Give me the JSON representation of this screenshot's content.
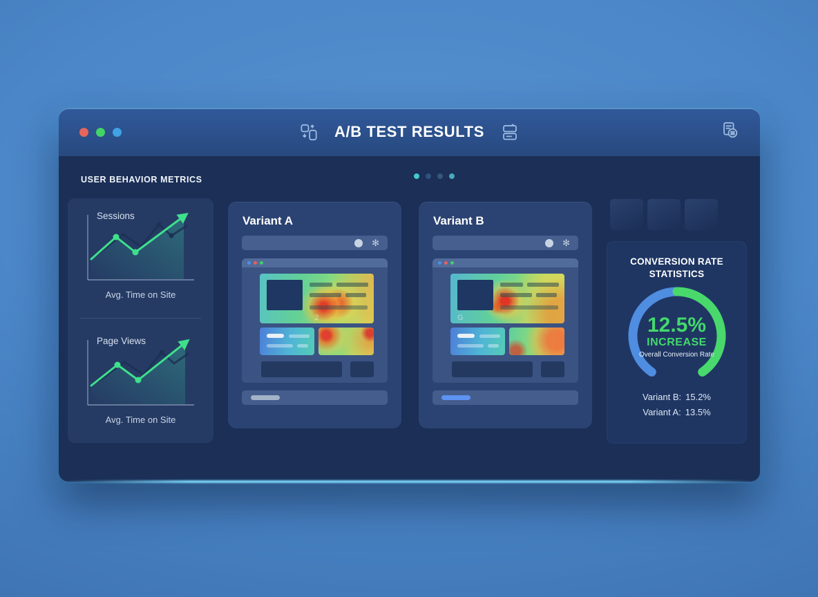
{
  "window": {
    "title": "A/B TEST RESULTS",
    "traffic_light_colors": [
      "#e8655a",
      "#43d467",
      "#3fa3e6"
    ],
    "pagination_dot_colors": [
      "#45c9ce",
      "#31517f",
      "#35577f",
      "#47a9bd"
    ],
    "icons": {
      "left_of_title": "swap-devices",
      "right_of_title": "stacked-cards",
      "far_right": "report-document"
    }
  },
  "colors": {
    "accent_green": "#3fe08c",
    "gauge_green": "#49d86c",
    "gauge_blue": "#4f8de0",
    "bright_teal": "#45c9ce"
  },
  "sidebar": {
    "section_label": "USER BEHAVIOR METRICS",
    "charts": [
      {
        "label": "Sessions",
        "caption": "Avg. Time on Site"
      },
      {
        "label": "Page Views",
        "caption": "Avg. Time on Site"
      }
    ]
  },
  "variants": [
    {
      "title": "Variant A",
      "watermark": "2",
      "footer_pill_color": "#a3b3c8",
      "browser_dots": [
        "blue",
        "red",
        "green"
      ],
      "addressbar_icons": [
        "search",
        "asterisk"
      ]
    },
    {
      "title": "Variant B",
      "watermark": "G",
      "footer_pill_color": "#5d93f2",
      "browser_dots": [
        "blue",
        "red",
        "green"
      ],
      "addressbar_icons": [
        "search",
        "asterisk"
      ]
    }
  ],
  "addressbar_asterisk_glyph": "✻",
  "stats": {
    "title_line1": "CONVERSION RATE",
    "title_line2": "STATISTICS",
    "gauge": {
      "value": "12.5%",
      "label": "INCREASE",
      "sublabel": "Overall Conversion Rate",
      "blue": "#4f8de0",
      "green": "#49d86c"
    },
    "rows": [
      {
        "label": "Variant B:",
        "value": "15.2%"
      },
      {
        "label": "Variant A:",
        "value": "13.5%"
      }
    ]
  },
  "chart_data": [
    {
      "type": "line",
      "title": "Sessions",
      "xlabel": "Avg. Time on Site",
      "series": [
        {
          "name": "ghost",
          "color": "#1d3154",
          "points": [
            [
              20,
              68
            ],
            [
              58,
              38
            ],
            [
              84,
              56
            ],
            [
              110,
              24
            ],
            [
              128,
              40
            ],
            [
              150,
              26
            ]
          ],
          "markers": [
            3,
            4
          ]
        },
        {
          "name": "main",
          "color": "#3fe08c",
          "points": [
            [
              12,
              74
            ],
            [
              48,
              42
            ],
            [
              76,
              64
            ],
            [
              146,
              12
            ]
          ],
          "markers": [
            1,
            2
          ]
        }
      ]
    },
    {
      "type": "line",
      "title": "Page Views",
      "xlabel": "Avg. Time on Site",
      "series": [
        {
          "name": "ghost",
          "color": "#1d3154",
          "points": [
            [
              22,
              70
            ],
            [
              60,
              42
            ],
            [
              88,
              60
            ],
            [
              114,
              28
            ],
            [
              132,
              44
            ],
            [
              152,
              30
            ]
          ],
          "markers": [
            3
          ]
        },
        {
          "name": "main",
          "color": "#3fe08c",
          "points": [
            [
              12,
              76
            ],
            [
              50,
              46
            ],
            [
              80,
              68
            ],
            [
              148,
              14
            ]
          ],
          "markers": [
            1,
            2
          ]
        }
      ]
    }
  ]
}
